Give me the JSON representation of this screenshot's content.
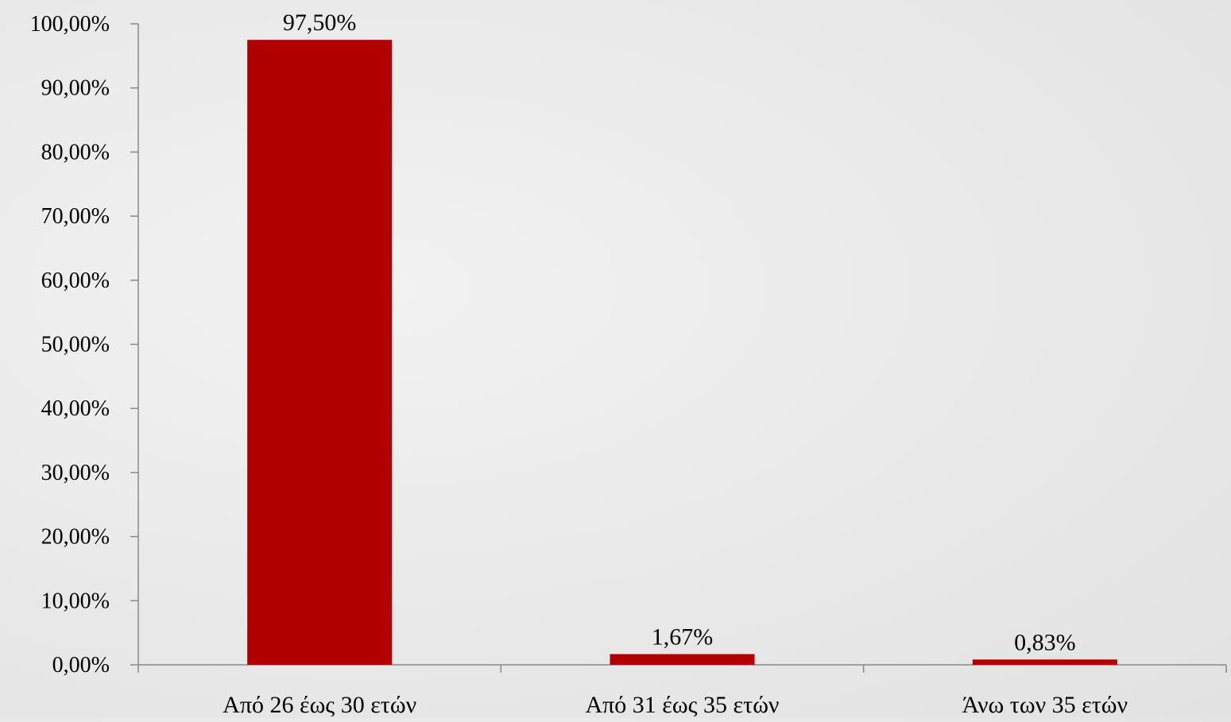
{
  "colors": {
    "bar": "#b00000",
    "axis": "#888888",
    "text": "#000000"
  },
  "chart_data": {
    "type": "bar",
    "title": "",
    "xlabel": "",
    "ylabel": "",
    "categories": [
      "Από 26 έως 30 ετών",
      "Από 31 έως 35 ετών",
      "Άνω των 35 ετών"
    ],
    "values": [
      97.5,
      1.67,
      0.83
    ],
    "data_labels": [
      "97,50%",
      "1,67%",
      "0,83%"
    ],
    "ylim": [
      0,
      100
    ],
    "y_ticks": [
      0,
      10,
      20,
      30,
      40,
      50,
      60,
      70,
      80,
      90,
      100
    ],
    "y_tick_labels": [
      "0,00%",
      "10,00%",
      "20,00%",
      "30,00%",
      "40,00%",
      "50,00%",
      "60,00%",
      "70,00%",
      "80,00%",
      "90,00%",
      "100,00%"
    ],
    "grid": false,
    "legend": "none"
  }
}
